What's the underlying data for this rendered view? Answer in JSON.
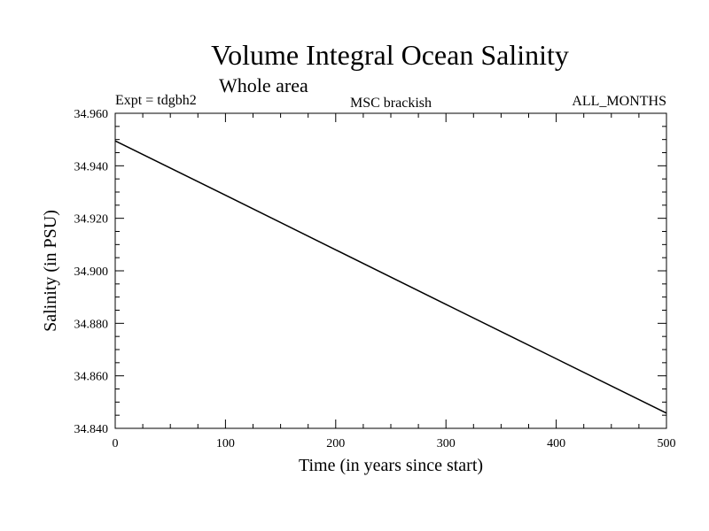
{
  "chart_data": {
    "type": "line",
    "title": "Volume Integral Ocean Salinity",
    "subtitle": "Whole area",
    "annotations": {
      "left": "Expt = tdgbh2",
      "center": "MSC brackish",
      "right": "ALL_MONTHS"
    },
    "xlabel": "Time (in years since start)",
    "ylabel": "Salinity (in PSU)",
    "xlim": [
      0,
      500
    ],
    "ylim": [
      34.84,
      34.96
    ],
    "x_ticks": [
      "0",
      "100",
      "200",
      "300",
      "400",
      "500"
    ],
    "y_ticks": [
      "34.840",
      "34.860",
      "34.880",
      "34.900",
      "34.920",
      "34.940",
      "34.960"
    ],
    "grid": false,
    "series": [
      {
        "x": [
          0,
          100,
          200,
          300,
          400,
          500
        ],
        "y": [
          34.9495,
          34.9288,
          34.908,
          34.8872,
          34.8665,
          34.8458
        ],
        "color": "#000000"
      }
    ]
  }
}
